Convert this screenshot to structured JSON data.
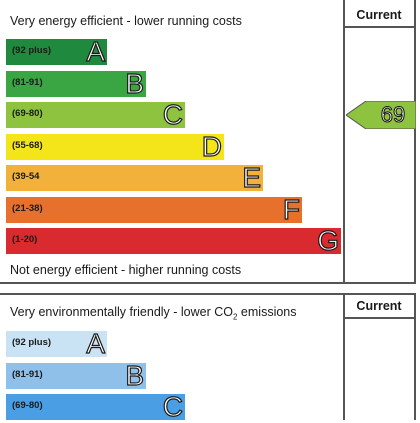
{
  "chart_data": [
    {
      "type": "bar",
      "title": "Very energy efficient - lower running costs",
      "footer": "Not energy efficient - higher running costs",
      "column_header": "Current",
      "bands": [
        {
          "range": "(92 plus)",
          "letter": "A",
          "color": "#1f8a3e"
        },
        {
          "range": "(81-91)",
          "letter": "B",
          "color": "#3aa543"
        },
        {
          "range": "(69-80)",
          "letter": "C",
          "color": "#8dc33f"
        },
        {
          "range": "(55-68)",
          "letter": "D",
          "color": "#f3e51a"
        },
        {
          "range": "(39-54",
          "letter": "E",
          "color": "#f2b13a"
        },
        {
          "range": "(21-38)",
          "letter": "F",
          "color": "#e8702d"
        },
        {
          "range": "(1-20)",
          "letter": "G",
          "color": "#d92b2f"
        }
      ],
      "current_rating": {
        "value": "69",
        "band": "C",
        "color": "#8dc33f"
      }
    },
    {
      "type": "bar",
      "title_prefix": "Very environmentally friendly - lower CO",
      "title_sub": "2",
      "title_suffix": " emissions",
      "column_header": "Current",
      "bands": [
        {
          "range": "(92 plus)",
          "letter": "A",
          "color": "#c9e2f4"
        },
        {
          "range": "(81-91)",
          "letter": "B",
          "color": "#8ec0ea"
        },
        {
          "range": "(69-80)",
          "letter": "C",
          "color": "#4a9ee3"
        }
      ]
    }
  ]
}
